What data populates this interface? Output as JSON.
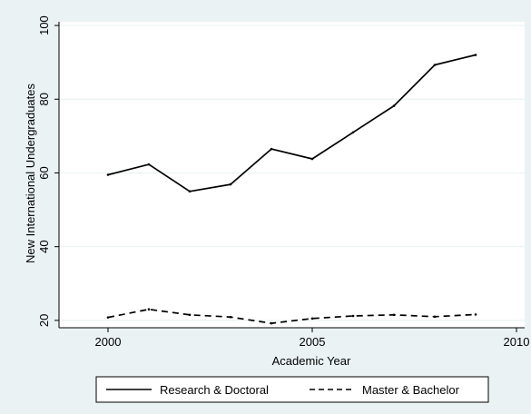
{
  "chart_data": {
    "type": "line",
    "xlabel": "Academic Year",
    "ylabel": "New International Undergraduates",
    "xlim": [
      1998.8,
      2010.2
    ],
    "ylim": [
      18,
      101
    ],
    "xticks": [
      2000,
      2005,
      2010
    ],
    "yticks": [
      20,
      40,
      60,
      80,
      100
    ],
    "xtick_labels": [
      "2000",
      "2005",
      "2010"
    ],
    "ytick_labels": [
      "20",
      "40",
      "60",
      "80",
      "100"
    ],
    "grid": true,
    "legend_position": "bottom",
    "x": [
      2000,
      2001,
      2002,
      2003,
      2004,
      2005,
      2006,
      2007,
      2008,
      2009
    ],
    "series": [
      {
        "name": "Research & Doctoral",
        "style": "solid",
        "color": "#000000",
        "values": [
          59.5,
          62.3,
          55.0,
          56.9,
          66.5,
          63.8,
          71.0,
          78.2,
          89.3,
          92.0
        ]
      },
      {
        "name": "Master & Bachelor",
        "style": "dashed",
        "color": "#000000",
        "values": [
          20.8,
          23.0,
          21.5,
          20.9,
          19.2,
          20.5,
          21.2,
          21.5,
          21.0,
          21.6
        ]
      }
    ]
  },
  "colors": {
    "background": "#eaf2f3",
    "plot_area": "#ffffff",
    "grid": "#eaf2f3",
    "line": "#000000"
  }
}
